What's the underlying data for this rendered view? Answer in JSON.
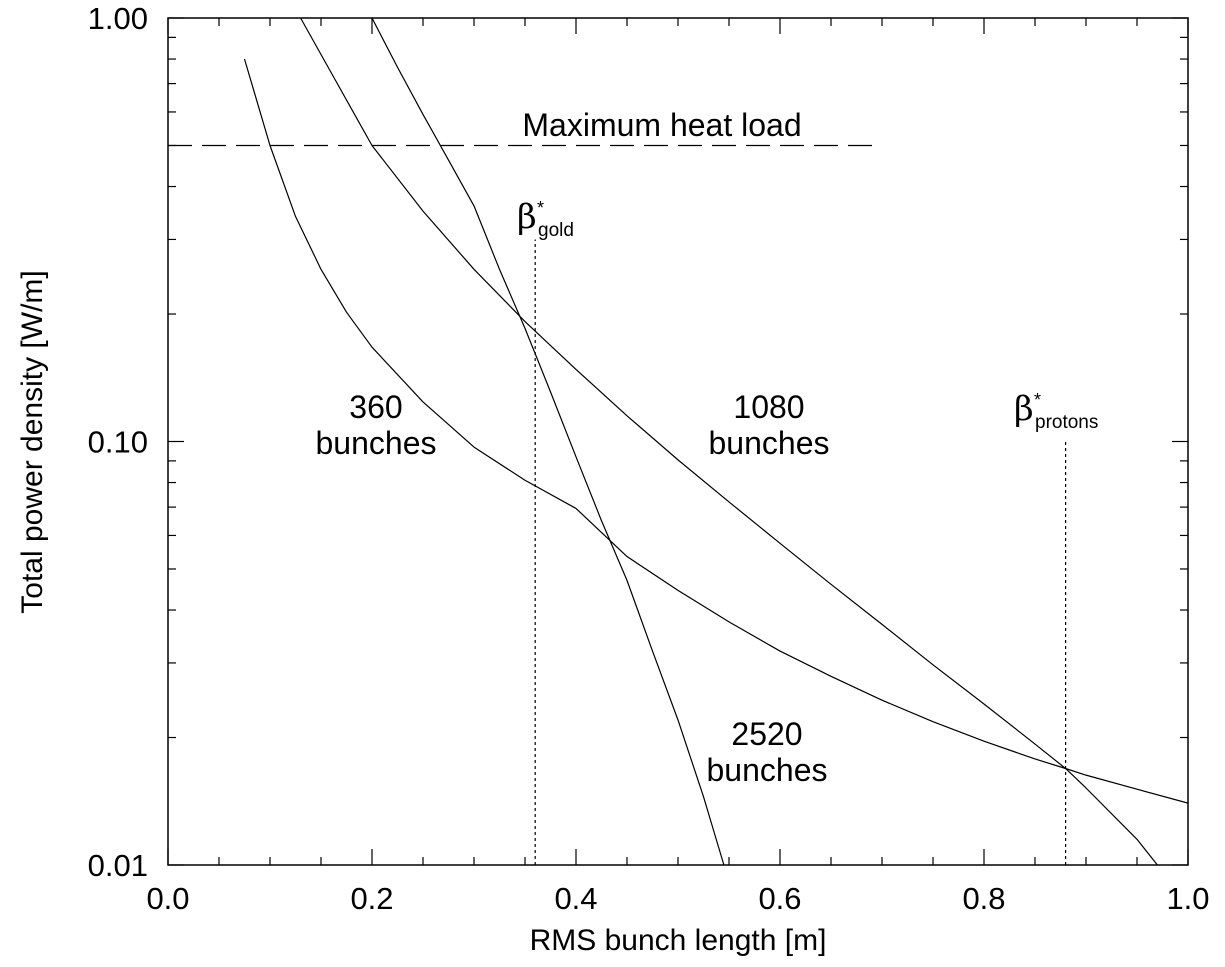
{
  "chart_data": {
    "type": "line",
    "title": "",
    "xlabel": "RMS bunch length [m]",
    "ylabel": "Total power density [W/m]",
    "xlim": [
      0.0,
      1.0
    ],
    "ylim": [
      0.01,
      1.0
    ],
    "yscale": "log",
    "grid": false,
    "x_ticks": [
      0.0,
      0.2,
      0.4,
      0.6,
      0.8,
      1.0
    ],
    "x_tick_labels": [
      "0.0",
      "0.2",
      "0.4",
      "0.6",
      "0.8",
      "1.0"
    ],
    "y_ticks": [
      0.01,
      0.1,
      1.0
    ],
    "y_tick_labels": [
      "0.01",
      "0.10",
      "1.00"
    ],
    "series": [
      {
        "label_lines": [
          "360",
          "bunches"
        ],
        "x": [
          0.075,
          0.1,
          0.125,
          0.15,
          0.175,
          0.2,
          0.25,
          0.3,
          0.35,
          0.4,
          0.45,
          0.5,
          0.55,
          0.6,
          0.65,
          0.7,
          0.75,
          0.8,
          0.85,
          0.88,
          0.9,
          0.95,
          1.0
        ],
        "y": [
          0.8,
          0.5,
          0.34,
          0.255,
          0.202,
          0.167,
          0.124,
          0.097,
          0.081,
          0.0695,
          0.0535,
          0.0445,
          0.0375,
          0.032,
          0.0279,
          0.0245,
          0.0218,
          0.0196,
          0.0178,
          0.0169,
          0.0163,
          0.0151,
          0.014
        ]
      },
      {
        "label_lines": [
          "1080",
          "bunches"
        ],
        "x": [
          0.13,
          0.15,
          0.2,
          0.25,
          0.3,
          0.35,
          0.4,
          0.45,
          0.5,
          0.55,
          0.6,
          0.65,
          0.7,
          0.75,
          0.8,
          0.85,
          0.88,
          0.9,
          0.95,
          0.97
        ],
        "y": [
          1.0,
          0.82,
          0.5,
          0.35,
          0.255,
          0.192,
          0.148,
          0.115,
          0.0905,
          0.072,
          0.0575,
          0.046,
          0.037,
          0.0297,
          0.024,
          0.0193,
          0.0169,
          0.0152,
          0.0115,
          0.01
        ]
      },
      {
        "label_lines": [
          "2520",
          "bunches"
        ],
        "x": [
          0.2,
          0.225,
          0.25,
          0.275,
          0.3,
          0.325,
          0.35,
          0.375,
          0.4,
          0.425,
          0.45,
          0.475,
          0.5,
          0.525,
          0.545
        ],
        "y": [
          1.0,
          0.765,
          0.592,
          0.462,
          0.36,
          0.255,
          0.185,
          0.131,
          0.092,
          0.065,
          0.047,
          0.032,
          0.022,
          0.0145,
          0.01
        ]
      }
    ],
    "reference_lines": [
      {
        "type": "horizontal",
        "y": 0.5,
        "x_range": [
          0.0,
          0.7
        ],
        "style": "dashed",
        "label": "Maximum heat load"
      },
      {
        "type": "vertical",
        "x": 0.36,
        "y_range": [
          0.01,
          0.3
        ],
        "style": "dotted",
        "label_symbol": "β",
        "label_sup": "*",
        "label_sub": "gold"
      },
      {
        "type": "vertical",
        "x": 0.88,
        "y_range": [
          0.01,
          0.1
        ],
        "style": "dotted",
        "label_symbol": "β",
        "label_sup": "*",
        "label_sub": "protons"
      }
    ]
  }
}
